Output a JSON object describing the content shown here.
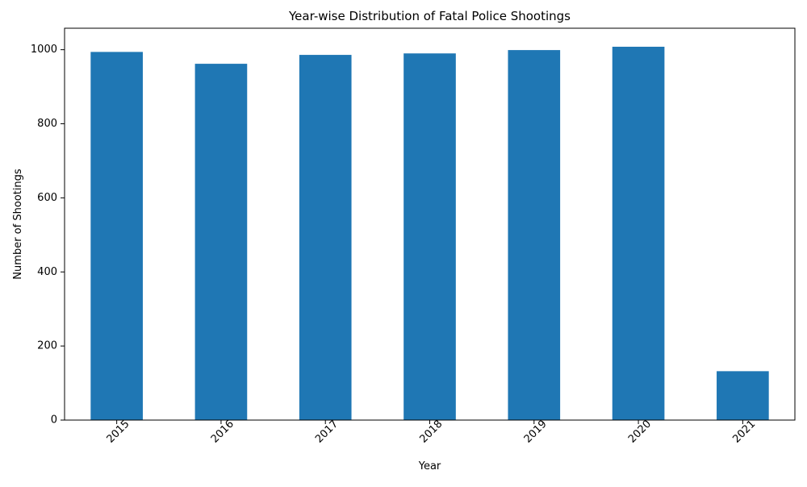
{
  "chart_data": {
    "type": "bar",
    "title": "Year-wise Distribution of Fatal Police Shootings",
    "xlabel": "Year",
    "ylabel": "Number of Shootings",
    "categories": [
      "2015",
      "2016",
      "2017",
      "2018",
      "2019",
      "2020",
      "2021"
    ],
    "values": [
      994,
      962,
      986,
      990,
      999,
      1008,
      132
    ],
    "ylim": [
      0,
      1058
    ],
    "yticks": [
      0,
      200,
      400,
      600,
      800,
      1000
    ],
    "grid": false,
    "bar_color": "#1f77b4",
    "x_tick_rotation_deg": 45
  }
}
